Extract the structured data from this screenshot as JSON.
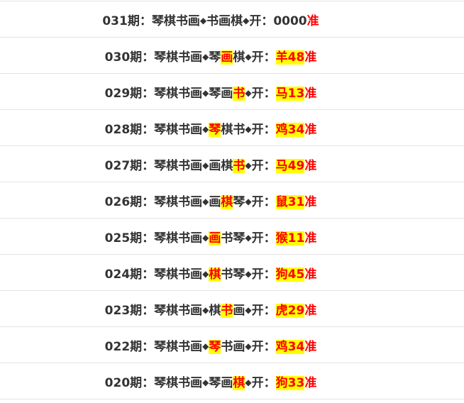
{
  "prefix": "琴棋书画",
  "separator": "◆",
  "open_label": "开：",
  "period_suffix": "期：",
  "accurate_label": "准",
  "colors": {
    "highlight_bg": "#ffff00",
    "accent": "#ff0000",
    "text": "#333333"
  },
  "rows": [
    {
      "period": "031",
      "chars": [
        "书",
        "画",
        "棋"
      ],
      "hit": -1,
      "result": "0000",
      "result_highlight": false
    },
    {
      "period": "030",
      "chars": [
        "琴",
        "画",
        "棋"
      ],
      "hit": 1,
      "result": "羊48",
      "result_highlight": true
    },
    {
      "period": "029",
      "chars": [
        "琴",
        "画",
        "书"
      ],
      "hit": 2,
      "result": "马13",
      "result_highlight": true
    },
    {
      "period": "028",
      "chars": [
        "琴",
        "棋",
        "书"
      ],
      "hit": 0,
      "result": "鸡34",
      "result_highlight": true
    },
    {
      "period": "027",
      "chars": [
        "画",
        "棋",
        "书"
      ],
      "hit": 2,
      "result": "马49",
      "result_highlight": true
    },
    {
      "period": "026",
      "chars": [
        "画",
        "棋",
        "琴"
      ],
      "hit": 1,
      "result": "鼠31",
      "result_highlight": true
    },
    {
      "period": "025",
      "chars": [
        "画",
        "书",
        "琴"
      ],
      "hit": 0,
      "result": "猴11",
      "result_highlight": true
    },
    {
      "period": "024",
      "chars": [
        "棋",
        "书",
        "琴"
      ],
      "hit": 0,
      "result": "狗45",
      "result_highlight": true
    },
    {
      "period": "023",
      "chars": [
        "棋",
        "书",
        "画"
      ],
      "hit": 1,
      "result": "虎29",
      "result_highlight": true
    },
    {
      "period": "022",
      "chars": [
        "琴",
        "书",
        "画"
      ],
      "hit": 0,
      "result": "鸡34",
      "result_highlight": true
    },
    {
      "period": "020",
      "chars": [
        "琴",
        "画",
        "棋"
      ],
      "hit": 2,
      "result": "狗33",
      "result_highlight": true
    }
  ]
}
